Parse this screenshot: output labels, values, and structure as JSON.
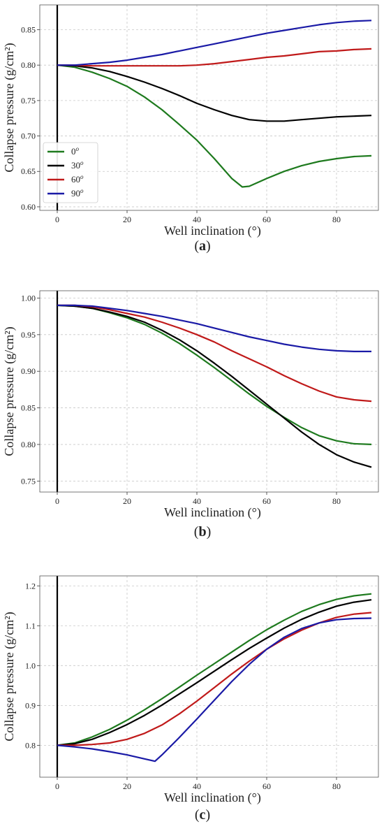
{
  "chart_data": [
    {
      "type": "line",
      "panel_label": "(a)",
      "xlabel": "Well inclination (°)",
      "ylabel": "Collapse pressure (g/cm²)",
      "xlim": [
        -5,
        92
      ],
      "ylim": [
        0.595,
        0.885
      ],
      "xticks": [
        0,
        20,
        40,
        60,
        80
      ],
      "xtick_labels": [
        "0",
        "20",
        "40",
        "60",
        "80"
      ],
      "yticks": [
        0.6,
        0.65,
        0.7,
        0.75,
        0.8,
        0.85
      ],
      "ytick_labels": [
        "0.60",
        "0.65",
        "0.70",
        "0.75",
        "0.80",
        "0.85"
      ],
      "grid": true,
      "legend_position": "lower-left",
      "series": [
        {
          "name": "0°",
          "color": "#1e7a1e",
          "x": [
            0,
            5,
            10,
            15,
            20,
            25,
            30,
            35,
            40,
            45,
            50,
            53,
            55,
            60,
            65,
            70,
            75,
            80,
            85,
            90
          ],
          "y": [
            0.8,
            0.797,
            0.79,
            0.781,
            0.77,
            0.755,
            0.737,
            0.716,
            0.694,
            0.668,
            0.64,
            0.628,
            0.629,
            0.64,
            0.65,
            0.658,
            0.664,
            0.668,
            0.671,
            0.672
          ]
        },
        {
          "name": "30°",
          "color": "#000000",
          "x": [
            0,
            5,
            10,
            15,
            20,
            25,
            30,
            35,
            40,
            45,
            50,
            55,
            60,
            65,
            70,
            75,
            80,
            85,
            90
          ],
          "y": [
            0.8,
            0.799,
            0.796,
            0.791,
            0.784,
            0.776,
            0.767,
            0.757,
            0.746,
            0.737,
            0.729,
            0.723,
            0.721,
            0.721,
            0.723,
            0.725,
            0.727,
            0.728,
            0.729
          ]
        },
        {
          "name": "60°",
          "color": "#c01a1a",
          "x": [
            0,
            5,
            10,
            15,
            20,
            25,
            30,
            35,
            40,
            45,
            50,
            55,
            60,
            65,
            70,
            75,
            80,
            85,
            90
          ],
          "y": [
            0.8,
            0.8,
            0.799,
            0.799,
            0.799,
            0.799,
            0.799,
            0.799,
            0.8,
            0.802,
            0.805,
            0.808,
            0.811,
            0.813,
            0.816,
            0.819,
            0.82,
            0.822,
            0.823
          ]
        },
        {
          "name": "90°",
          "color": "#1a1aa6",
          "x": [
            0,
            5,
            10,
            15,
            20,
            25,
            30,
            35,
            40,
            45,
            50,
            55,
            60,
            65,
            70,
            75,
            80,
            85,
            90
          ],
          "y": [
            0.8,
            0.8,
            0.802,
            0.804,
            0.807,
            0.811,
            0.815,
            0.82,
            0.825,
            0.83,
            0.835,
            0.84,
            0.845,
            0.849,
            0.853,
            0.857,
            0.86,
            0.862,
            0.863
          ]
        }
      ]
    },
    {
      "type": "line",
      "panel_label": "(b)",
      "xlabel": "Well inclination (°)",
      "ylabel": "Collapse pressure (g/cm²)",
      "xlim": [
        -5,
        92
      ],
      "ylim": [
        0.735,
        1.01
      ],
      "xticks": [
        0,
        20,
        40,
        60,
        80
      ],
      "xtick_labels": [
        "0",
        "20",
        "40",
        "60",
        "80"
      ],
      "yticks": [
        0.75,
        0.8,
        0.85,
        0.9,
        0.95,
        1.0
      ],
      "ytick_labels": [
        "0.75",
        "0.80",
        "0.85",
        "0.90",
        "0.95",
        "1.00"
      ],
      "grid": true,
      "legend_position": "none",
      "series": [
        {
          "name": "0°",
          "color": "#1e7a1e",
          "x": [
            0,
            5,
            10,
            15,
            20,
            25,
            30,
            35,
            40,
            45,
            50,
            55,
            60,
            65,
            70,
            75,
            80,
            85,
            90
          ],
          "y": [
            0.99,
            0.989,
            0.986,
            0.98,
            0.973,
            0.964,
            0.952,
            0.938,
            0.922,
            0.905,
            0.887,
            0.869,
            0.852,
            0.837,
            0.823,
            0.812,
            0.805,
            0.801,
            0.8
          ]
        },
        {
          "name": "30°",
          "color": "#000000",
          "x": [
            0,
            5,
            10,
            15,
            20,
            25,
            30,
            35,
            40,
            45,
            50,
            55,
            60,
            65,
            70,
            75,
            80,
            85,
            90
          ],
          "y": [
            0.99,
            0.989,
            0.986,
            0.981,
            0.975,
            0.967,
            0.956,
            0.943,
            0.928,
            0.911,
            0.893,
            0.874,
            0.855,
            0.836,
            0.817,
            0.8,
            0.786,
            0.776,
            0.769
          ]
        },
        {
          "name": "60°",
          "color": "#c01a1a",
          "x": [
            0,
            5,
            10,
            15,
            20,
            25,
            30,
            35,
            40,
            45,
            50,
            55,
            60,
            65,
            70,
            75,
            80,
            85,
            90
          ],
          "y": [
            0.99,
            0.99,
            0.988,
            0.984,
            0.979,
            0.974,
            0.967,
            0.959,
            0.95,
            0.94,
            0.928,
            0.917,
            0.906,
            0.894,
            0.883,
            0.873,
            0.865,
            0.861,
            0.859
          ]
        },
        {
          "name": "90°",
          "color": "#1a1aa6",
          "x": [
            0,
            5,
            10,
            15,
            20,
            25,
            30,
            35,
            40,
            45,
            50,
            55,
            60,
            65,
            70,
            75,
            80,
            85,
            90
          ],
          "y": [
            0.99,
            0.99,
            0.989,
            0.986,
            0.983,
            0.979,
            0.975,
            0.97,
            0.965,
            0.959,
            0.953,
            0.947,
            0.942,
            0.937,
            0.933,
            0.93,
            0.928,
            0.927,
            0.927
          ]
        }
      ]
    },
    {
      "type": "line",
      "panel_label": "(c)",
      "xlabel": "Well inclination (°)",
      "ylabel": "Collapse pressure (g/cm²)",
      "xlim": [
        -5,
        92
      ],
      "ylim": [
        0.72,
        1.225
      ],
      "xticks": [
        0,
        20,
        40,
        60,
        80
      ],
      "xtick_labels": [
        "0",
        "20",
        "40",
        "60",
        "80"
      ],
      "yticks": [
        0.8,
        0.9,
        1.0,
        1.1,
        1.2
      ],
      "ytick_labels": [
        "0.8",
        "0.9",
        "1.0",
        "1.1",
        "1.2"
      ],
      "grid": true,
      "legend_position": "none",
      "series": [
        {
          "name": "0°",
          "color": "#1e7a1e",
          "x": [
            0,
            5,
            10,
            15,
            20,
            25,
            30,
            35,
            40,
            45,
            50,
            55,
            60,
            65,
            70,
            75,
            80,
            85,
            90
          ],
          "y": [
            0.8,
            0.806,
            0.821,
            0.84,
            0.863,
            0.889,
            0.917,
            0.946,
            0.976,
            1.005,
            1.034,
            1.063,
            1.09,
            1.114,
            1.136,
            1.153,
            1.166,
            1.175,
            1.18
          ]
        },
        {
          "name": "30°",
          "color": "#000000",
          "x": [
            0,
            5,
            10,
            15,
            20,
            25,
            30,
            35,
            40,
            45,
            50,
            55,
            60,
            65,
            70,
            75,
            80,
            85,
            90
          ],
          "y": [
            0.8,
            0.804,
            0.815,
            0.832,
            0.852,
            0.875,
            0.901,
            0.929,
            0.957,
            0.986,
            1.015,
            1.043,
            1.069,
            1.094,
            1.116,
            1.134,
            1.149,
            1.159,
            1.165
          ]
        },
        {
          "name": "60°",
          "color": "#c01a1a",
          "x": [
            0,
            5,
            10,
            15,
            20,
            25,
            30,
            35,
            40,
            45,
            50,
            55,
            60,
            65,
            70,
            75,
            80,
            85,
            90
          ],
          "y": [
            0.8,
            0.8,
            0.802,
            0.806,
            0.815,
            0.83,
            0.851,
            0.879,
            0.911,
            0.945,
            0.979,
            1.011,
            1.041,
            1.067,
            1.089,
            1.107,
            1.121,
            1.129,
            1.133
          ]
        },
        {
          "name": "90°",
          "color": "#1a1aa6",
          "x": [
            0,
            5,
            10,
            15,
            20,
            25,
            28,
            30,
            35,
            40,
            45,
            50,
            55,
            60,
            65,
            70,
            75,
            80,
            85,
            90
          ],
          "y": [
            0.8,
            0.796,
            0.791,
            0.784,
            0.776,
            0.766,
            0.76,
            0.776,
            0.82,
            0.866,
            0.913,
            0.96,
            1.003,
            1.041,
            1.071,
            1.093,
            1.107,
            1.115,
            1.118,
            1.119
          ]
        }
      ]
    }
  ]
}
